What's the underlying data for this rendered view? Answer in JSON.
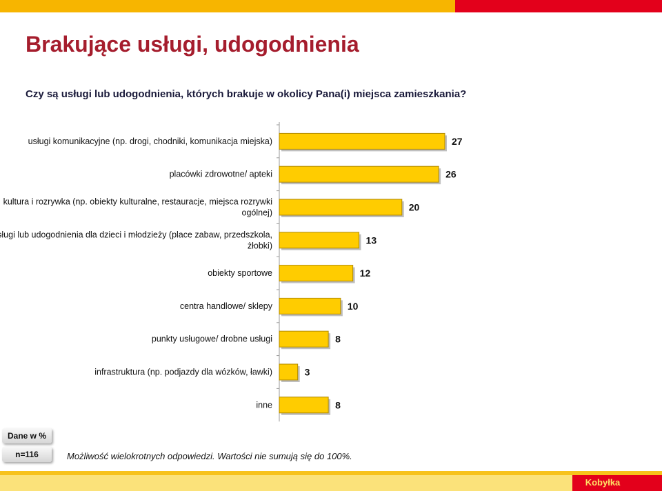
{
  "page": {
    "title": "Brakujące usługi, udogodnienia",
    "question": "Czy są usługi lub udogodnienia, których brakuje w okolicy Pana(i) miejsca zamieszkania?",
    "data_note": "Dane w %",
    "sample_note": "n=116",
    "footnote": "Możliwość wielokrotnych odpowiedzi. Wartości nie sumują się do 100%.",
    "footer_brand": "Kobyłka"
  },
  "colors": {
    "bar_fill": "#ffcc00",
    "bar_border": "#b08900",
    "title": "#a51d2d",
    "top_yellow": "#f7b500",
    "top_red": "#e3001b"
  },
  "chart_data": {
    "type": "bar",
    "orientation": "horizontal",
    "categories": [
      [
        "usługi komunikacyjne (np. drogi, chodniki, komunikacja miejska)"
      ],
      [
        "placówki zdrowotne/ apteki"
      ],
      [
        "kultura i rozrywka (np. obiekty kulturalne, restauracje, miejsca rozrywki",
        "ogólnej)"
      ],
      [
        "usługi lub udogodnienia dla dzieci i młodzieży (place zabaw, przedszkola,",
        "żłobki)"
      ],
      [
        "obiekty sportowe"
      ],
      [
        "centra handlowe/ sklepy"
      ],
      [
        "punkty usługowe/ drobne usługi"
      ],
      [
        "infrastruktura (np. podjazdy dla wózków, ławki)"
      ],
      [
        "inne"
      ]
    ],
    "values": [
      27,
      26,
      20,
      13,
      12,
      10,
      8,
      3,
      8
    ],
    "data_labels": true,
    "grid": false
  }
}
